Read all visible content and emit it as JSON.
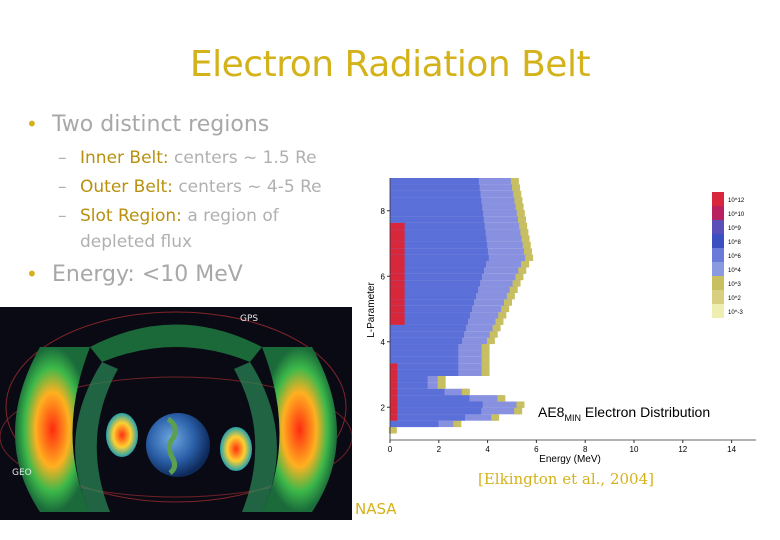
{
  "slide": {
    "title": "Electron Radiation Belt",
    "bullets": [
      {
        "text": "Two distinct regions"
      },
      {
        "text": "Energy: <10 MeV"
      }
    ],
    "sub_items": [
      {
        "term": "Inner Belt:",
        "rest": " centers ~ 1.5 Re"
      },
      {
        "term": "Outer Belt:",
        "rest": " centers ~ 4-5 Re"
      },
      {
        "term": "Slot Region:",
        "rest": " a region of"
      },
      {
        "term": "",
        "rest": "depleted flux"
      }
    ],
    "reference": "[Elkington et al., 2004]",
    "credit": "NASA"
  },
  "image_labels": {
    "gps": "GPS",
    "geo": "GEO"
  },
  "chart_data": {
    "type": "heatmap",
    "title": "AE8MIN Electron Distribution",
    "title_main": "AE8",
    "title_sub": "MIN",
    "title_rest": " Electron Distribution",
    "xlabel": "Energy (MeV)",
    "ylabel": "L-Parameter",
    "xlim": [
      0,
      15
    ],
    "ylim": [
      1,
      9
    ],
    "x_ticks": [
      0,
      2,
      4,
      6,
      8,
      10,
      12,
      14
    ],
    "y_ticks": [
      2,
      4,
      6,
      8
    ],
    "colorbar_ticks": [
      "10^12",
      "10^10",
      "10^9",
      "10^8",
      "10^6",
      "10^4",
      "10^3",
      "10^2",
      "10^-3"
    ],
    "colors": {
      "high": "#d8263a",
      "mid": "#5a6fd8",
      "low": "#8890e0",
      "edge": "#c8c060"
    }
  }
}
